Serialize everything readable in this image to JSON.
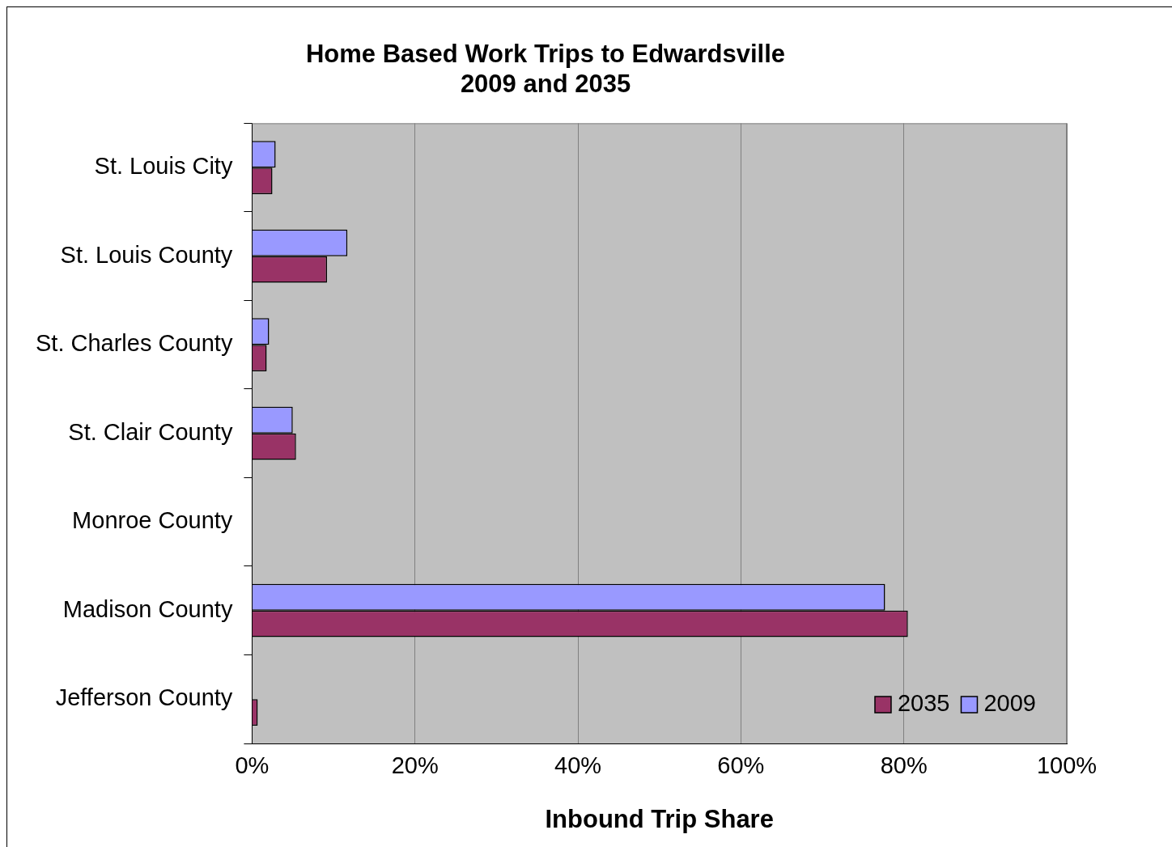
{
  "chart_data": {
    "type": "bar",
    "orientation": "horizontal",
    "title": "Home Based Work Trips to Edwardsville\n2009 and 2035",
    "xlabel": "Inbound Trip Share",
    "categories": [
      "St. Louis City",
      "St. Louis County",
      "St. Charles County",
      "St. Clair County",
      "Monroe County",
      "Madison County",
      "Jefferson County"
    ],
    "series": [
      {
        "name": "2009",
        "color": "#9999ff",
        "values": [
          2.9,
          11.7,
          2.1,
          5.0,
          0,
          77.7,
          0
        ]
      },
      {
        "name": "2035",
        "color": "#993366",
        "values": [
          2.5,
          9.2,
          1.8,
          5.4,
          0,
          80.5,
          0.7
        ]
      }
    ],
    "xlim": [
      0,
      100
    ],
    "xticks": [
      {
        "value": 0,
        "label": "0%"
      },
      {
        "value": 20,
        "label": "20%"
      },
      {
        "value": 40,
        "label": "40%"
      },
      {
        "value": 60,
        "label": "60%"
      },
      {
        "value": 80,
        "label": "80%"
      },
      {
        "value": 100,
        "label": "100%"
      }
    ],
    "grid": "x",
    "legend": "bottom right"
  }
}
